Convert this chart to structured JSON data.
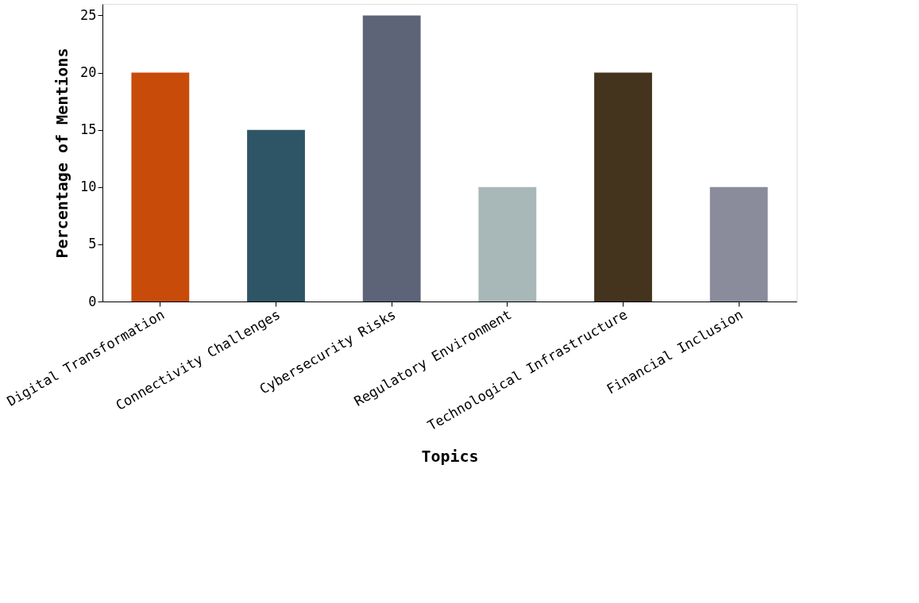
{
  "chart_data": {
    "type": "bar",
    "xlabel": "Topics",
    "ylabel": "Percentage of Mentions",
    "categories": [
      "Digital Transformation",
      "Connectivity Challenges",
      "Cybersecurity Risks",
      "Regulatory Environment",
      "Technological Infrastructure",
      "Financial Inclusion"
    ],
    "values": [
      20,
      15,
      25,
      10,
      20,
      10
    ],
    "colors": [
      "#c84b0a",
      "#2e5566",
      "#5e6478",
      "#a8b8b8",
      "#44341e",
      "#8a8c9c"
    ],
    "ylim": [
      0,
      26
    ],
    "yticks": [
      0,
      5,
      10,
      15,
      20,
      25
    ],
    "grid": false
  }
}
